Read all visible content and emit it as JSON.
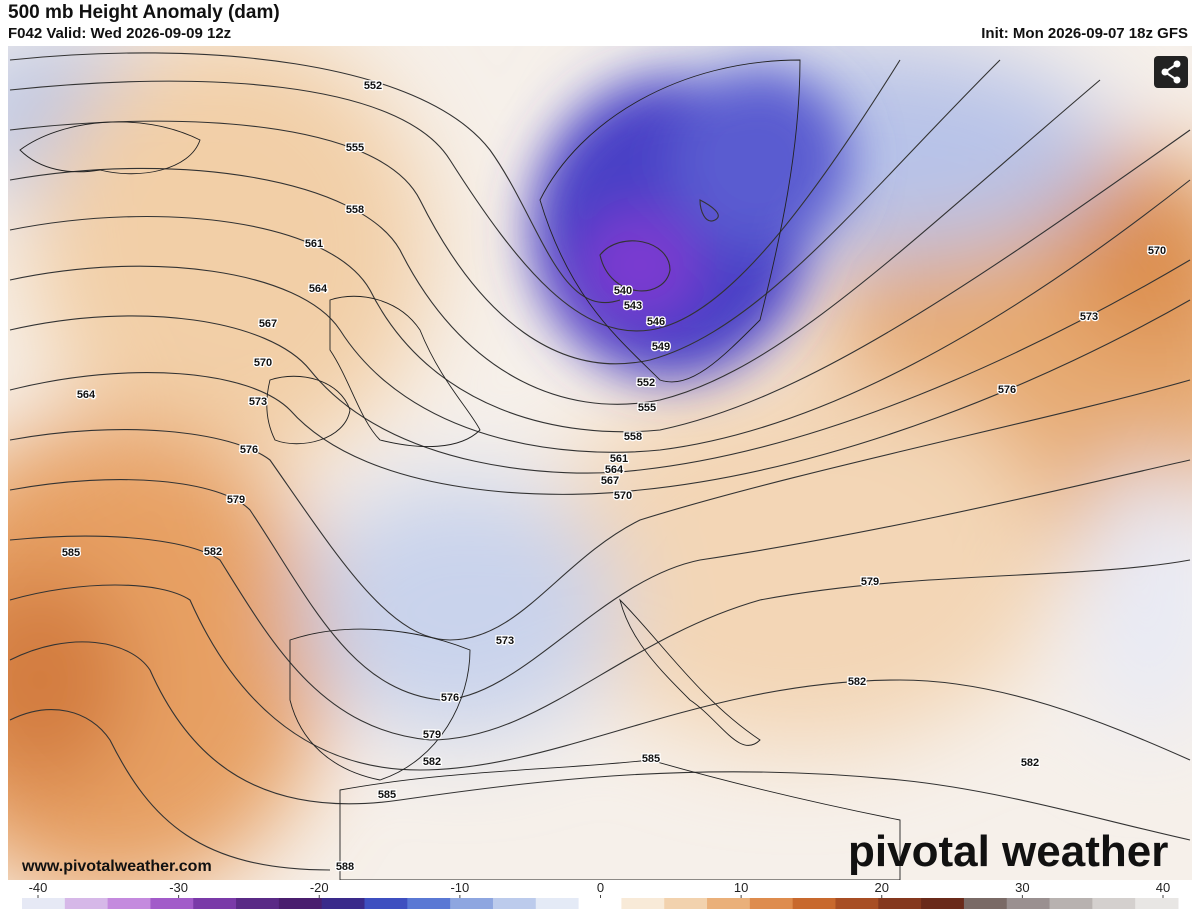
{
  "header": {
    "title": "500 mb Height Anomaly (dam)",
    "valid": "F042 Valid: Wed 2026-09-09 12z",
    "init": "Init: Mon 2026-09-07 18z GFS"
  },
  "map": {
    "contour_labels": [
      552,
      555,
      558,
      561,
      564,
      567,
      570,
      573,
      576,
      579,
      585,
      582,
      564,
      540,
      543,
      546,
      549,
      552,
      555,
      558,
      561,
      564,
      567,
      570,
      573,
      576,
      579,
      582,
      585,
      588,
      585,
      570,
      573,
      576,
      579,
      582,
      582
    ]
  },
  "colorbar": {
    "ticks": [
      -40,
      -30,
      -20,
      -10,
      0,
      10,
      20,
      30,
      40
    ]
  },
  "footer": {
    "website": "www.pivotalweather.com",
    "brand": "pivotal weather"
  }
}
